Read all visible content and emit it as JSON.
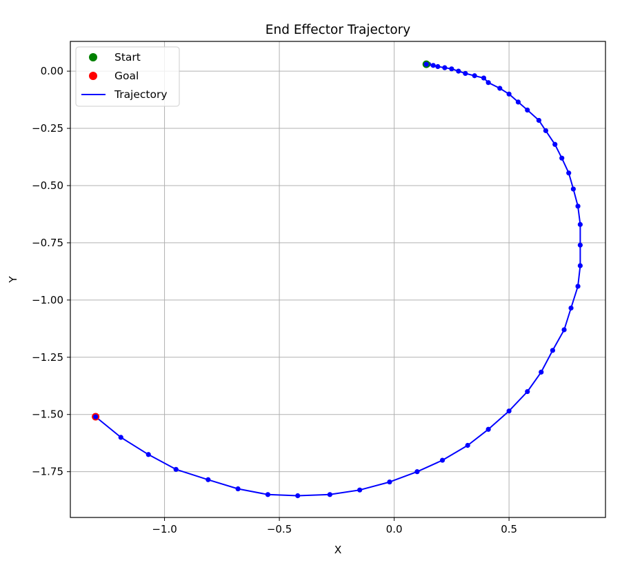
{
  "chart_data": {
    "type": "line",
    "title": "End Effector Trajectory",
    "xlabel": "X",
    "ylabel": "Y",
    "xlim": [
      -1.41,
      0.92
    ],
    "ylim": [
      -1.95,
      0.13
    ],
    "xticks": [
      -1.0,
      -0.5,
      0.0,
      0.5
    ],
    "xtick_labels": [
      "−1.0",
      "−0.5",
      "0.0",
      "0.5"
    ],
    "yticks": [
      0.0,
      -0.25,
      -0.5,
      -0.75,
      -1.0,
      -1.25,
      -1.5,
      -1.75
    ],
    "ytick_labels": [
      "0.00",
      "−0.25",
      "−0.50",
      "−0.75",
      "−1.00",
      "−1.25",
      "−1.50",
      "−1.75"
    ],
    "grid": true,
    "legend": {
      "placement": "top-left",
      "entries": [
        {
          "label": "Start",
          "kind": "marker",
          "color": "#008000"
        },
        {
          "label": "Goal",
          "kind": "marker",
          "color": "#ff0000"
        },
        {
          "label": "Trajectory",
          "kind": "line",
          "color": "#0000ff"
        }
      ]
    },
    "start": {
      "name": "Start",
      "x": 0.14,
      "y": 0.03,
      "color": "#008000"
    },
    "goal": {
      "name": "Goal",
      "x": -1.3,
      "y": -1.51,
      "color": "#ff0000"
    },
    "series": [
      {
        "name": "Trajectory",
        "color": "#0000ff",
        "x": [
          0.14,
          0.15,
          0.17,
          0.19,
          0.22,
          0.25,
          0.28,
          0.31,
          0.35,
          0.39,
          0.41,
          0.46,
          0.5,
          0.54,
          0.58,
          0.63,
          0.66,
          0.7,
          0.73,
          0.76,
          0.78,
          0.8,
          0.81,
          0.81,
          0.81,
          0.8,
          0.77,
          0.74,
          0.69,
          0.64,
          0.58,
          0.5,
          0.41,
          0.32,
          0.21,
          0.1,
          -0.02,
          -0.15,
          -0.28,
          -0.42,
          -0.55,
          -0.68,
          -0.81,
          -0.95,
          -1.07,
          -1.19,
          -1.3
        ],
        "y": [
          0.03,
          0.03,
          0.025,
          0.02,
          0.015,
          0.01,
          0.0,
          -0.01,
          -0.02,
          -0.03,
          -0.05,
          -0.075,
          -0.1,
          -0.135,
          -0.17,
          -0.215,
          -0.26,
          -0.32,
          -0.38,
          -0.445,
          -0.515,
          -0.59,
          -0.67,
          -0.76,
          -0.85,
          -0.94,
          -1.035,
          -1.13,
          -1.22,
          -1.315,
          -1.4,
          -1.485,
          -1.565,
          -1.635,
          -1.7,
          -1.75,
          -1.795,
          -1.83,
          -1.85,
          -1.855,
          -1.85,
          -1.825,
          -1.785,
          -1.74,
          -1.675,
          -1.6,
          -1.51
        ]
      }
    ]
  }
}
